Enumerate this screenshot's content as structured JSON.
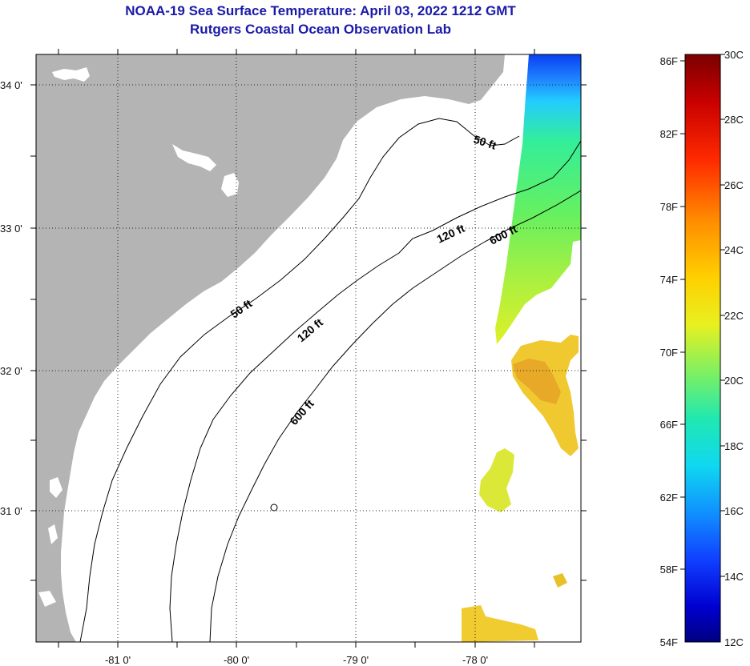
{
  "header": {
    "title": "NOAA-19 Sea Surface Temperature:  April 03, 2022 1212 GMT",
    "subtitle": "Rutgers Coastal Ocean Observation Lab"
  },
  "map": {
    "lat_ticks": [
      {
        "value": 34,
        "label": "34 0'"
      },
      {
        "value": 33,
        "label": "33 0'"
      },
      {
        "value": 32,
        "label": "32 0'"
      },
      {
        "value": 31,
        "label": "31 0'"
      }
    ],
    "lon_ticks": [
      {
        "value": -81,
        "label": "-81 0'"
      },
      {
        "value": -80,
        "label": "-80 0'"
      },
      {
        "value": -79,
        "label": "-79 0'"
      },
      {
        "value": -78,
        "label": "-78 0'"
      }
    ],
    "contours": [
      {
        "name": "50 ft",
        "label": "50 ft"
      },
      {
        "name": "120 ft",
        "label": "120 ft"
      },
      {
        "name": "600 ft",
        "label": "600 ft"
      }
    ],
    "land_color": "#b4b4b4",
    "grid": "dotted"
  },
  "legend": {
    "fahrenheit": [
      "86F",
      "82F",
      "78F",
      "74F",
      "70F",
      "66F",
      "62F",
      "58F",
      "54F"
    ],
    "celsius": [
      "30C",
      "28C",
      "26C",
      "24C",
      "22C",
      "20C",
      "18C",
      "16C",
      "14C",
      "12C"
    ]
  }
}
